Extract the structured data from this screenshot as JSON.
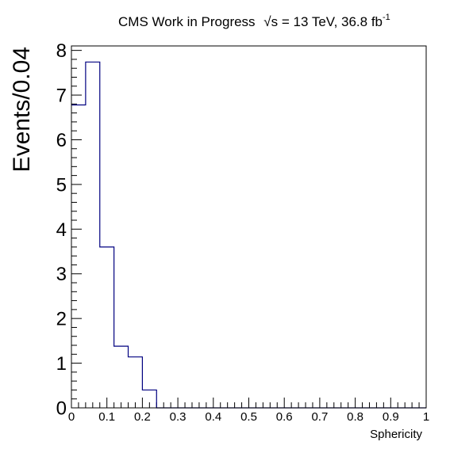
{
  "chart_data": {
    "type": "histogram",
    "title_main": "CMS Work in Progress",
    "title_sqrt": "√s",
    "title_energy": " = 13 TeV, 36.8 fb",
    "title_exp": "-1",
    "xlabel": "Sphericity",
    "ylabel": "Events/0.04",
    "xlim": [
      0,
      1
    ],
    "ylim": [
      0,
      8.1
    ],
    "bin_width": 0.04,
    "x_tick_labels": [
      "0",
      "0.1",
      "0.2",
      "0.3",
      "0.4",
      "0.5",
      "0.6",
      "0.7",
      "0.8",
      "0.9",
      "1"
    ],
    "y_tick_labels": [
      "0",
      "1",
      "2",
      "3",
      "4",
      "5",
      "6",
      "7",
      "8"
    ],
    "bin_edges": [
      0,
      0.04,
      0.08,
      0.12,
      0.16,
      0.2,
      0.24,
      0.28,
      0.32,
      0.36,
      0.4,
      0.44,
      0.48,
      0.52,
      0.56,
      0.6,
      0.64,
      0.68,
      0.72,
      0.76,
      0.8,
      0.84,
      0.88,
      0.92,
      0.96,
      1.0
    ],
    "values": [
      6.78,
      7.74,
      3.6,
      1.38,
      1.14,
      0.4,
      0,
      0,
      0,
      0,
      0,
      0,
      0,
      0,
      0,
      0,
      0,
      0,
      0,
      0,
      0,
      0,
      0,
      0,
      0
    ],
    "line_color": "#000080",
    "grid": false
  }
}
